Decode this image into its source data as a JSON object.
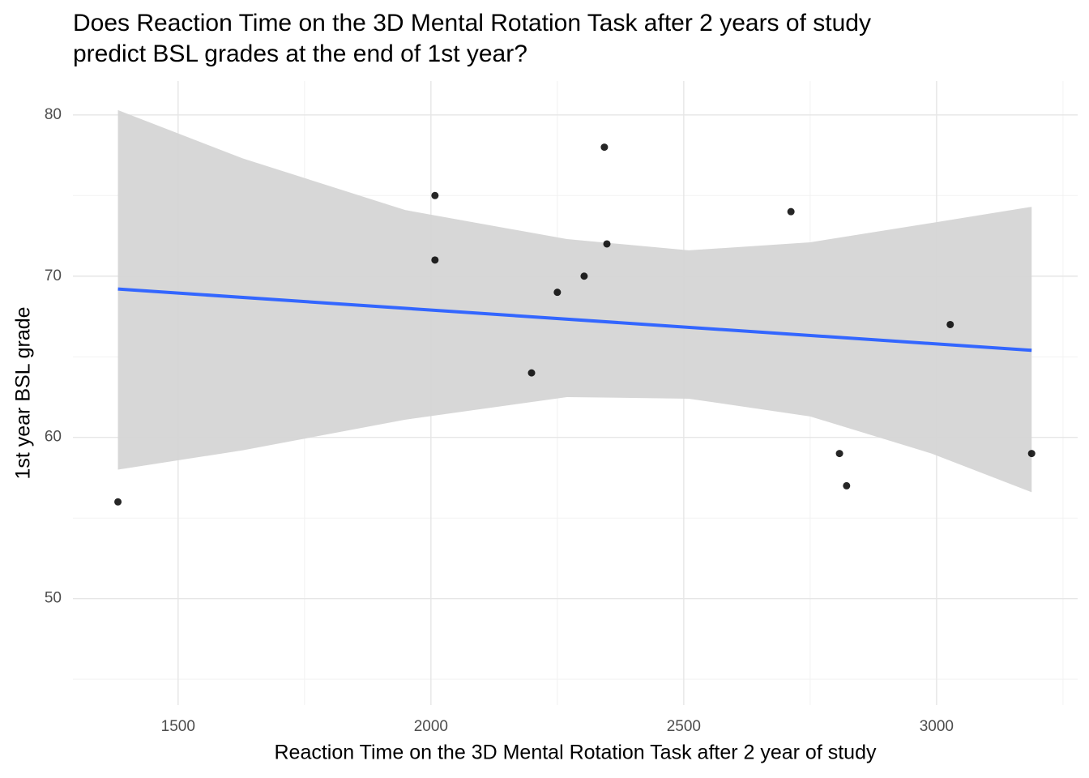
{
  "chart_data": {
    "type": "scatter",
    "title": [
      "Does Reaction Time on the 3D Mental Rotation Task after 2 years of study",
      "predict BSL grades at the end of 1st year?"
    ],
    "x_label": "Reaction Time on the 3D Mental Rotation Task after 2 year of study",
    "y_label": "1st year BSL grade",
    "x": [
      1381,
      2008,
      2008,
      2199,
      2250,
      2303,
      2343,
      2348,
      2712,
      2808,
      2822,
      3027,
      3188
    ],
    "y": [
      56,
      75,
      71,
      64,
      69,
      70,
      78,
      72,
      74,
      59,
      57,
      67,
      59
    ],
    "color": "#000000",
    "trend": {
      "color": "#3366ff",
      "x": [
        1381,
        3188
      ],
      "y": [
        69.2,
        65.4
      ]
    },
    "band": {
      "color": "#d5d5d5",
      "x": [
        1381,
        1628,
        1949,
        2269,
        2510,
        2750,
        2990,
        3188
      ],
      "upper": [
        80.3,
        77.3,
        74.1,
        72.3,
        71.6,
        72.1,
        73.3,
        74.3
      ],
      "lower": [
        58.0,
        59.2,
        61.1,
        62.5,
        62.4,
        61.3,
        59.0,
        56.6
      ]
    },
    "xlim": [
      1292,
      3279
    ],
    "ylim": [
      43.4,
      82.1
    ],
    "xticks": [
      1500,
      2000,
      2500,
      3000
    ],
    "yticks": [
      50,
      60,
      70,
      80
    ],
    "xminor": [
      1750,
      2250,
      2750,
      3250
    ],
    "yminor": [
      45,
      55,
      65,
      75
    ],
    "grid": true
  }
}
